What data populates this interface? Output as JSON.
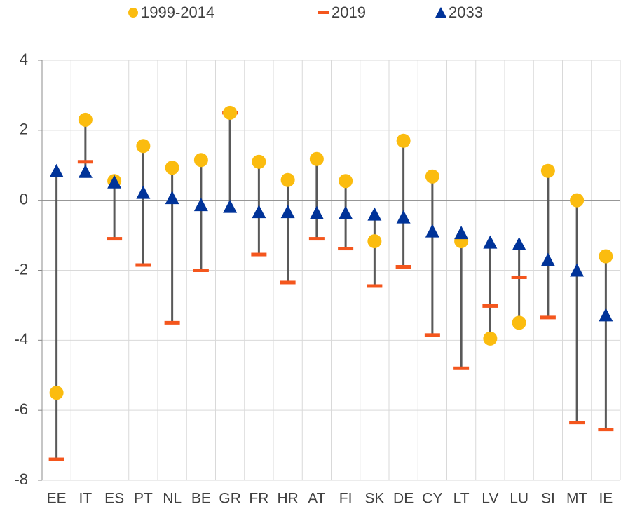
{
  "chart_data": {
    "type": "dot-range",
    "categories": [
      "EE",
      "IT",
      "ES",
      "PT",
      "NL",
      "BE",
      "GR",
      "FR",
      "HR",
      "AT",
      "FI",
      "SK",
      "DE",
      "CY",
      "LT",
      "LV",
      "LU",
      "SI",
      "MT",
      "IE"
    ],
    "series": [
      {
        "name": "1999-2014",
        "color": "#fbbc0f",
        "marker": "circle",
        "values": [
          -5.5,
          2.3,
          0.55,
          1.55,
          0.93,
          1.15,
          2.5,
          1.1,
          0.58,
          1.18,
          0.55,
          -1.17,
          1.7,
          0.68,
          -1.17,
          -3.95,
          -3.5,
          0.84,
          0,
          -1.6
        ]
      },
      {
        "name": "2019",
        "color": "#f4561d",
        "marker": "dash",
        "values": [
          -7.4,
          1.1,
          -1.1,
          -1.85,
          -3.5,
          -2.0,
          2.5,
          -1.55,
          -2.35,
          -1.1,
          -1.38,
          -2.45,
          -1.9,
          -3.85,
          -4.8,
          -3.02,
          -2.2,
          -3.35,
          -6.35,
          -6.55
        ]
      },
      {
        "name": "2033",
        "color": "#003399",
        "marker": "triangle",
        "values": [
          0.82,
          0.8,
          0.5,
          0.2,
          0.05,
          -0.15,
          -0.2,
          -0.35,
          -0.35,
          -0.38,
          -0.38,
          -0.42,
          -0.5,
          -0.9,
          -0.95,
          -1.22,
          -1.27,
          -1.72,
          -2.02,
          -3.3
        ]
      }
    ],
    "range_line_color": "#595959",
    "ylim": [
      -8,
      4
    ],
    "yticks": [
      -8,
      -6,
      -4,
      -2,
      0,
      2,
      4
    ],
    "grid": true
  }
}
